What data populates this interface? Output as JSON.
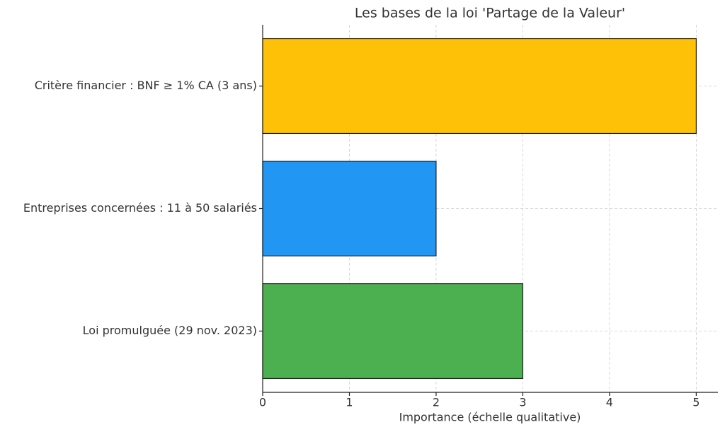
{
  "chart_data": {
    "type": "barh",
    "title": "Les bases de la loi 'Partage de la Valeur'",
    "xlabel": "Importance (échelle qualitative)",
    "categories": [
      "Critère financier : BNF ≥ 1% CA (3 ans)",
      "Entreprises concernées : 11 à 50 salariés",
      "Loi promulguée (29 nov. 2023)"
    ],
    "values": [
      5,
      2,
      3
    ],
    "colors": [
      "#FFC107",
      "#2196F3",
      "#4CAF50"
    ],
    "xlim": [
      0,
      5.25
    ],
    "xticks": [
      0,
      1,
      2,
      3,
      4,
      5
    ],
    "grid": true
  }
}
